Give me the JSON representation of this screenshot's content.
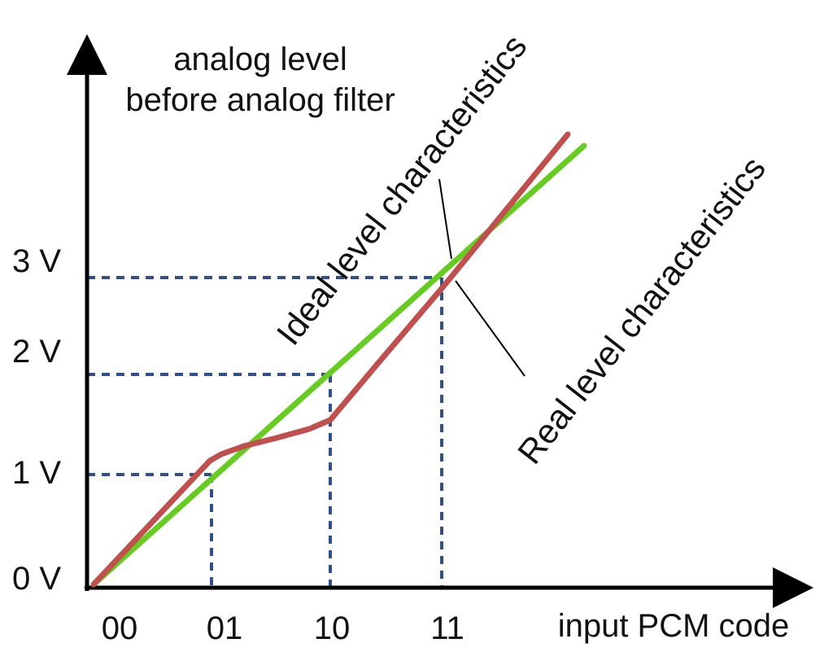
{
  "diagram": {
    "y_axis_label_line1": "analog level",
    "y_axis_label_line2": "before analog filter",
    "x_axis_label": "input PCM code",
    "y_ticks": [
      "0 V",
      "1 V",
      "2 V",
      "3 V"
    ],
    "x_ticks": [
      "00",
      "01",
      "10",
      "11"
    ],
    "ideal_label": "Ideal level characteristics",
    "real_label": "Real level characteristics",
    "colors": {
      "ideal_line": "#66cc22",
      "real_line": "#c0504d",
      "guide_lines": "#2f4f8f",
      "axes": "#000000"
    }
  }
}
